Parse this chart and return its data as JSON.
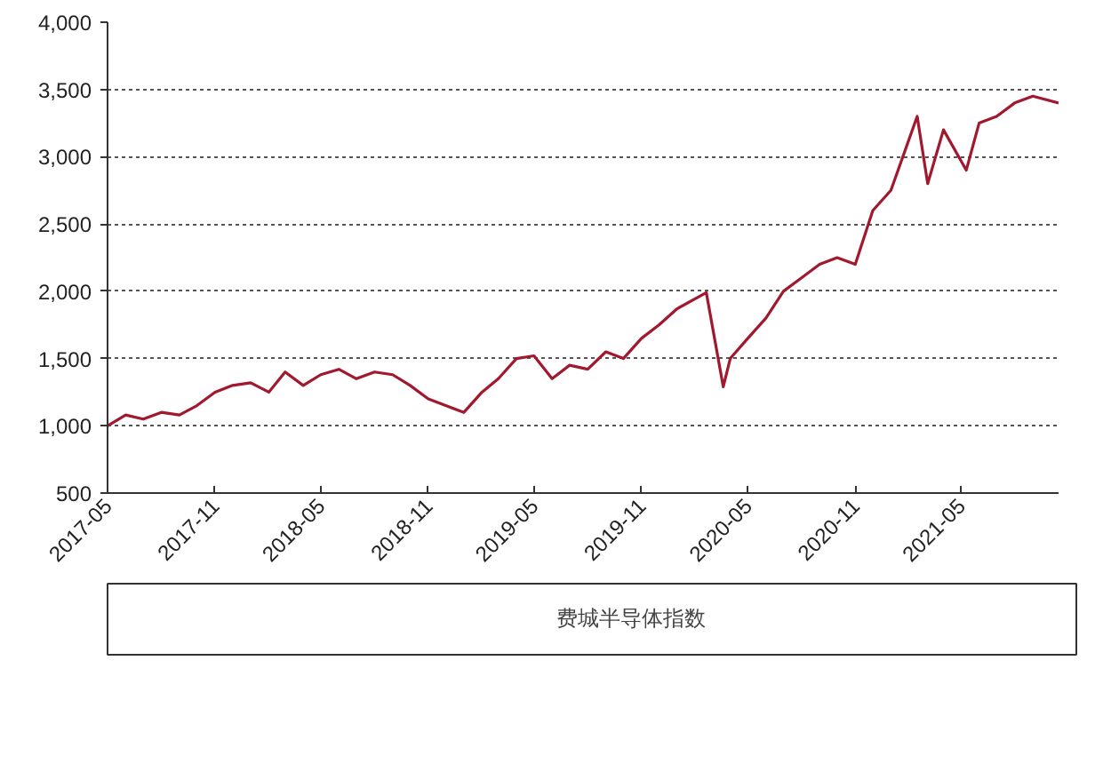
{
  "chart_data": {
    "type": "line",
    "xlim": [
      "2017-05",
      "2021-10-15"
    ],
    "ylim": [
      500,
      4000
    ],
    "xticks": [
      "2017-05",
      "2017-11",
      "2018-05",
      "2018-11",
      "2019-05",
      "2019-11",
      "2020-05",
      "2020-11",
      "2021-05"
    ],
    "yticks": [
      {
        "value": 500,
        "label": "500"
      },
      {
        "value": 1000,
        "label": "1,000"
      },
      {
        "value": 1500,
        "label": "1,500"
      },
      {
        "value": 2000,
        "label": "2,000"
      },
      {
        "value": 2500,
        "label": "2,500"
      },
      {
        "value": 3000,
        "label": "3,000"
      },
      {
        "value": 3500,
        "label": "3,500"
      },
      {
        "value": 4000,
        "label": "4,000"
      }
    ],
    "x": [
      "2017-05",
      "2017-06",
      "2017-07",
      "2017-08",
      "2017-09",
      "2017-10",
      "2017-11",
      "2017-12",
      "2018-01",
      "2018-02",
      "2018-03",
      "2018-04",
      "2018-05",
      "2018-06",
      "2018-07",
      "2018-08",
      "2018-09",
      "2018-10",
      "2018-11",
      "2018-12",
      "2019-01",
      "2019-02",
      "2019-03",
      "2019-04",
      "2019-05",
      "2019-06",
      "2019-07",
      "2019-08",
      "2019-09",
      "2019-10",
      "2019-11",
      "2019-12",
      "2020-01",
      "2020-02-20",
      "2020-03-20",
      "2020-04",
      "2020-05",
      "2020-06",
      "2020-07",
      "2020-08",
      "2020-09",
      "2020-10",
      "2020-11",
      "2020-12",
      "2021-01",
      "2021-02-15",
      "2021-03-05",
      "2021-04",
      "2021-05-10",
      "2021-06",
      "2021-07",
      "2021-08",
      "2021-09",
      "2021-10-15"
    ],
    "series": [
      {
        "name": "费城半导体指数",
        "color": "#a0192e",
        "values": [
          1000,
          1080,
          1050,
          1100,
          1080,
          1150,
          1250,
          1300,
          1320,
          1250,
          1400,
          1300,
          1380,
          1420,
          1350,
          1400,
          1380,
          1300,
          1200,
          1150,
          1100,
          1250,
          1350,
          1500,
          1520,
          1350,
          1450,
          1420,
          1550,
          1500,
          1650,
          1750,
          1870,
          1990,
          1290,
          1500,
          1650,
          1800,
          2000,
          2100,
          2200,
          2250,
          2200,
          2600,
          2750,
          3300,
          2800,
          3200,
          2900,
          3250,
          3300,
          3400,
          3450,
          3400
        ]
      }
    ],
    "grid": "y",
    "legend": "bottom",
    "line_style": "solid",
    "marker": "none"
  }
}
